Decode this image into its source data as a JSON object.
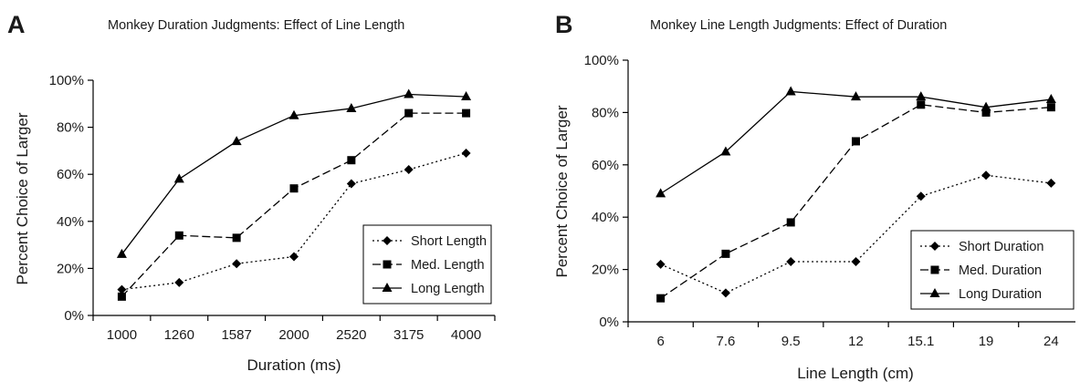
{
  "chart_data": [
    {
      "panel": "A",
      "type": "line",
      "title": "Monkey Duration Judgments: Effect of Line Length",
      "xlabel": "Duration (ms)",
      "ylabel": "Percent Choice of Larger",
      "categories": [
        "1000",
        "1260",
        "1587",
        "2000",
        "2520",
        "3175",
        "4000"
      ],
      "yticks": [
        "0%",
        "20%",
        "40%",
        "60%",
        "80%",
        "100%"
      ],
      "ylim": [
        0,
        100
      ],
      "grid": false,
      "legend_position": "bottom-right",
      "series": [
        {
          "name": "Short Length",
          "marker": "diamond",
          "dash": "dotted",
          "values": [
            11,
            14,
            22,
            25,
            56,
            62,
            69
          ]
        },
        {
          "name": "Med. Length",
          "marker": "square",
          "dash": "dashed",
          "values": [
            8,
            34,
            33,
            54,
            66,
            86,
            86
          ]
        },
        {
          "name": "Long Length",
          "marker": "triangle",
          "dash": "solid",
          "values": [
            26,
            58,
            74,
            85,
            88,
            94,
            93
          ]
        }
      ]
    },
    {
      "panel": "B",
      "type": "line",
      "title": "Monkey Line Length Judgments: Effect of Duration",
      "xlabel": "Line Length (cm)",
      "ylabel": "Percent Choice of Larger",
      "categories": [
        "6",
        "7.6",
        "9.5",
        "12",
        "15.1",
        "19",
        "24"
      ],
      "yticks": [
        "0%",
        "20%",
        "40%",
        "60%",
        "80%",
        "100%"
      ],
      "ylim": [
        0,
        100
      ],
      "grid": false,
      "legend_position": "bottom-right",
      "series": [
        {
          "name": "Short Duration",
          "marker": "diamond",
          "dash": "dotted",
          "values": [
            22,
            11,
            23,
            23,
            48,
            56,
            53
          ]
        },
        {
          "name": "Med. Duration",
          "marker": "square",
          "dash": "dashed",
          "values": [
            9,
            26,
            38,
            69,
            83,
            80,
            82
          ]
        },
        {
          "name": "Long Duration",
          "marker": "triangle",
          "dash": "solid",
          "values": [
            49,
            65,
            88,
            86,
            86,
            82,
            85
          ]
        }
      ]
    }
  ]
}
